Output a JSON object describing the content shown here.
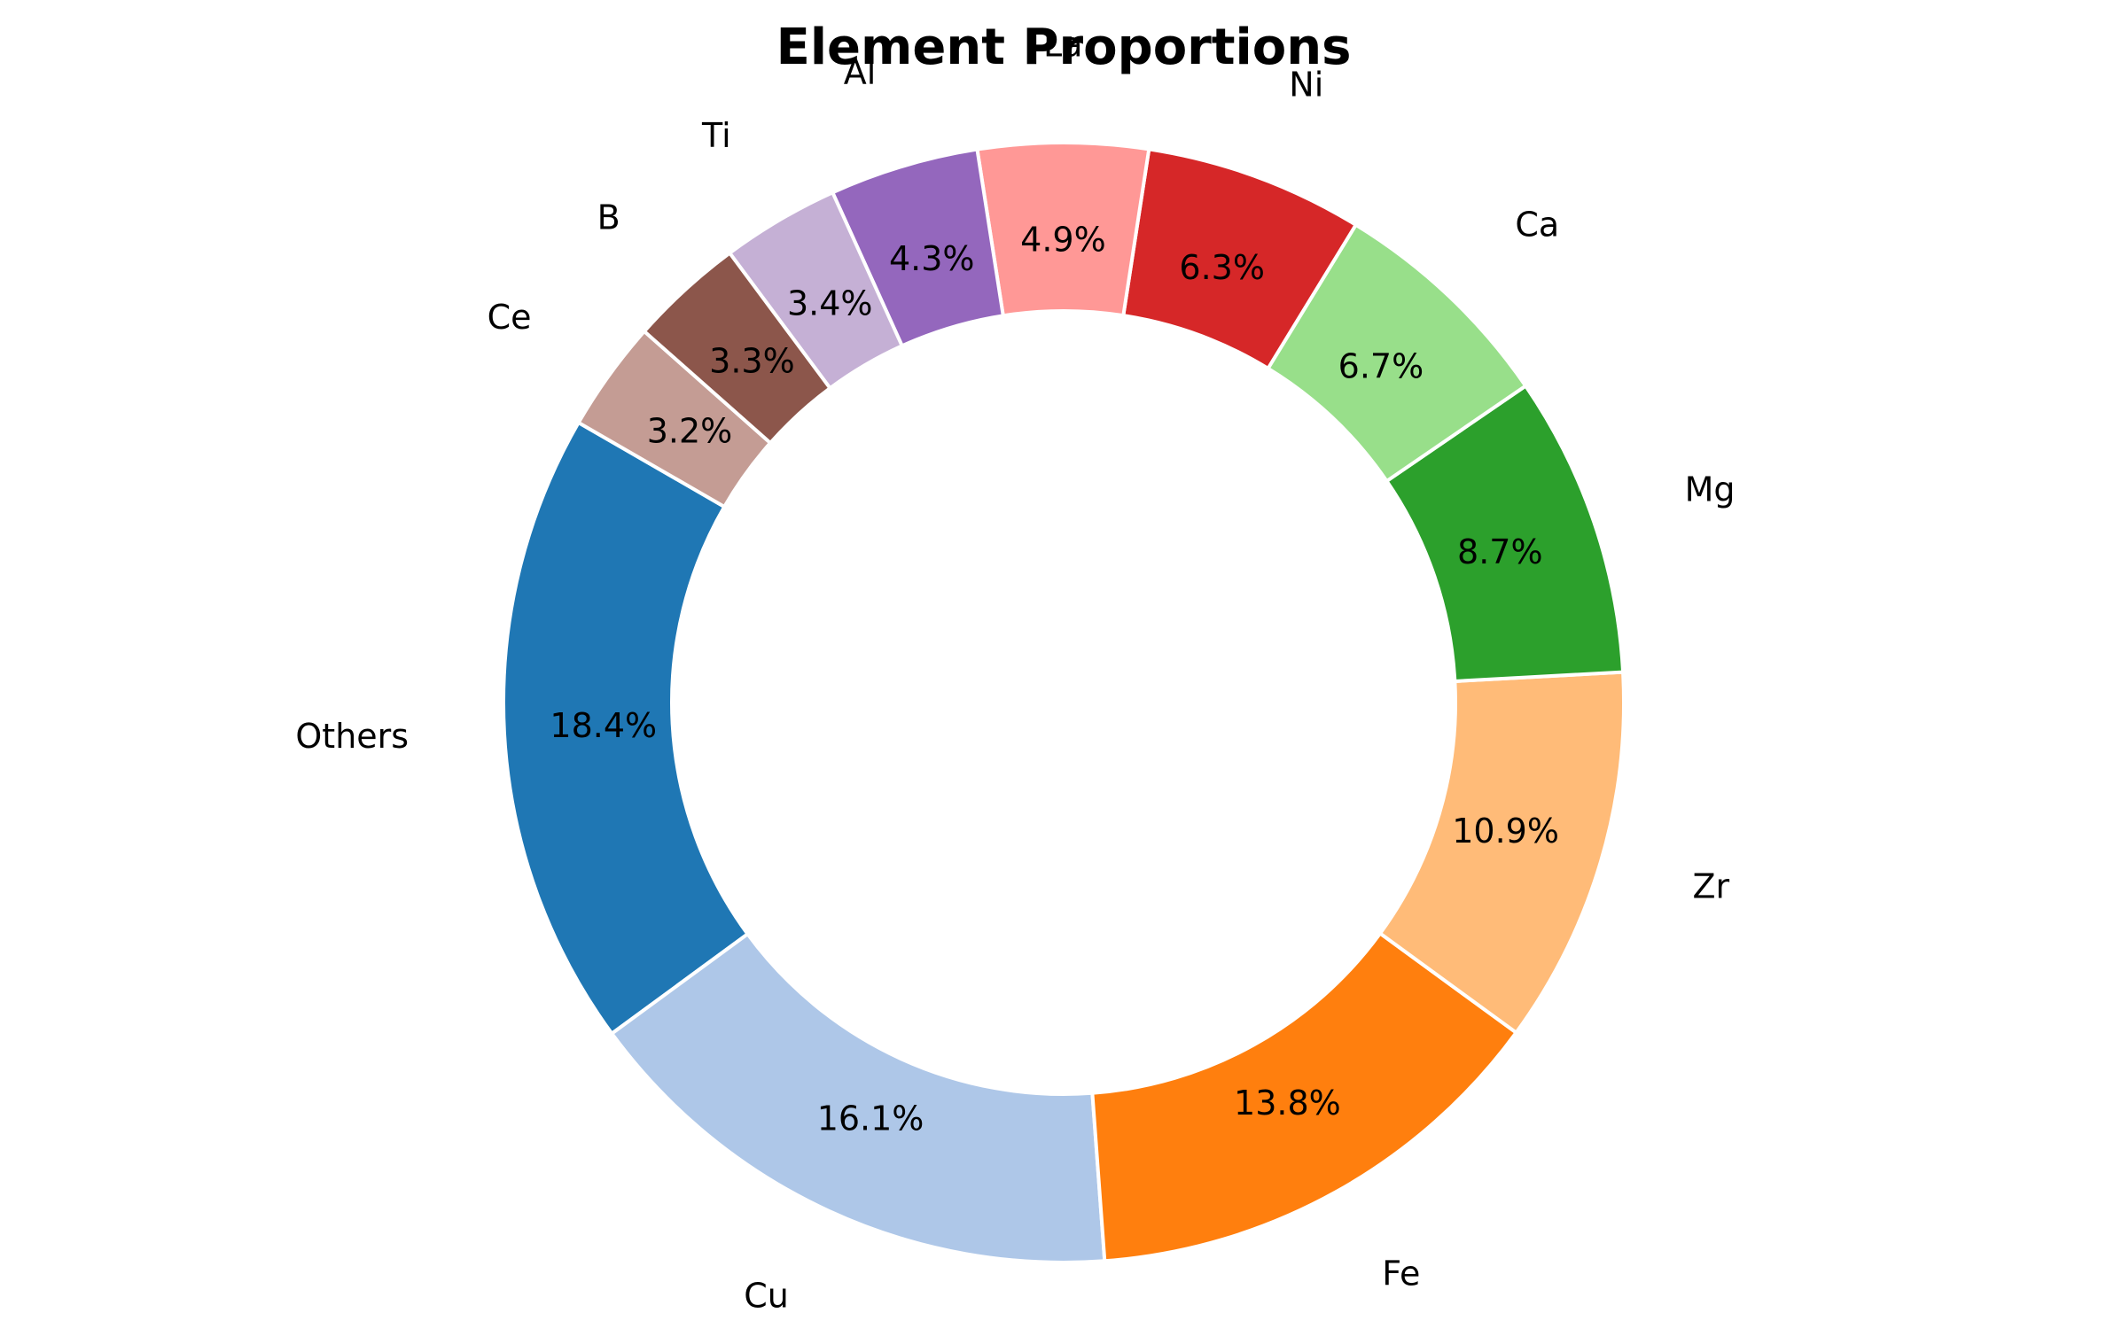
{
  "chart_data": {
    "type": "pie",
    "variant": "donut",
    "title": "Element Proportions",
    "start_angle_deg": 150,
    "direction": "counterclockwise",
    "slices": [
      {
        "label": "Others",
        "value": 18.4,
        "pct_label": "18.4%",
        "color": "#1f77b4"
      },
      {
        "label": "Cu",
        "value": 16.1,
        "pct_label": "16.1%",
        "color": "#aec7e8"
      },
      {
        "label": "Fe",
        "value": 13.8,
        "pct_label": "13.8%",
        "color": "#ff7f0e"
      },
      {
        "label": "Zr",
        "value": 10.9,
        "pct_label": "10.9%",
        "color": "#ffbb78"
      },
      {
        "label": "Mg",
        "value": 8.7,
        "pct_label": "8.7%",
        "color": "#2ca02c"
      },
      {
        "label": "Ca",
        "value": 6.7,
        "pct_label": "6.7%",
        "color": "#98df8a"
      },
      {
        "label": "Ni",
        "value": 6.3,
        "pct_label": "6.3%",
        "color": "#d62728"
      },
      {
        "label": "La",
        "value": 4.9,
        "pct_label": "4.9%",
        "color": "#ff9896"
      },
      {
        "label": "Al",
        "value": 4.3,
        "pct_label": "4.3%",
        "color": "#9467bd"
      },
      {
        "label": "Ti",
        "value": 3.4,
        "pct_label": "3.4%",
        "color": "#c5b0d5"
      },
      {
        "label": "B",
        "value": 3.3,
        "pct_label": "3.3%",
        "color": "#8c564b"
      },
      {
        "label": "Ce",
        "value": 3.2,
        "pct_label": "3.2%",
        "color": "#c49c94"
      }
    ]
  }
}
